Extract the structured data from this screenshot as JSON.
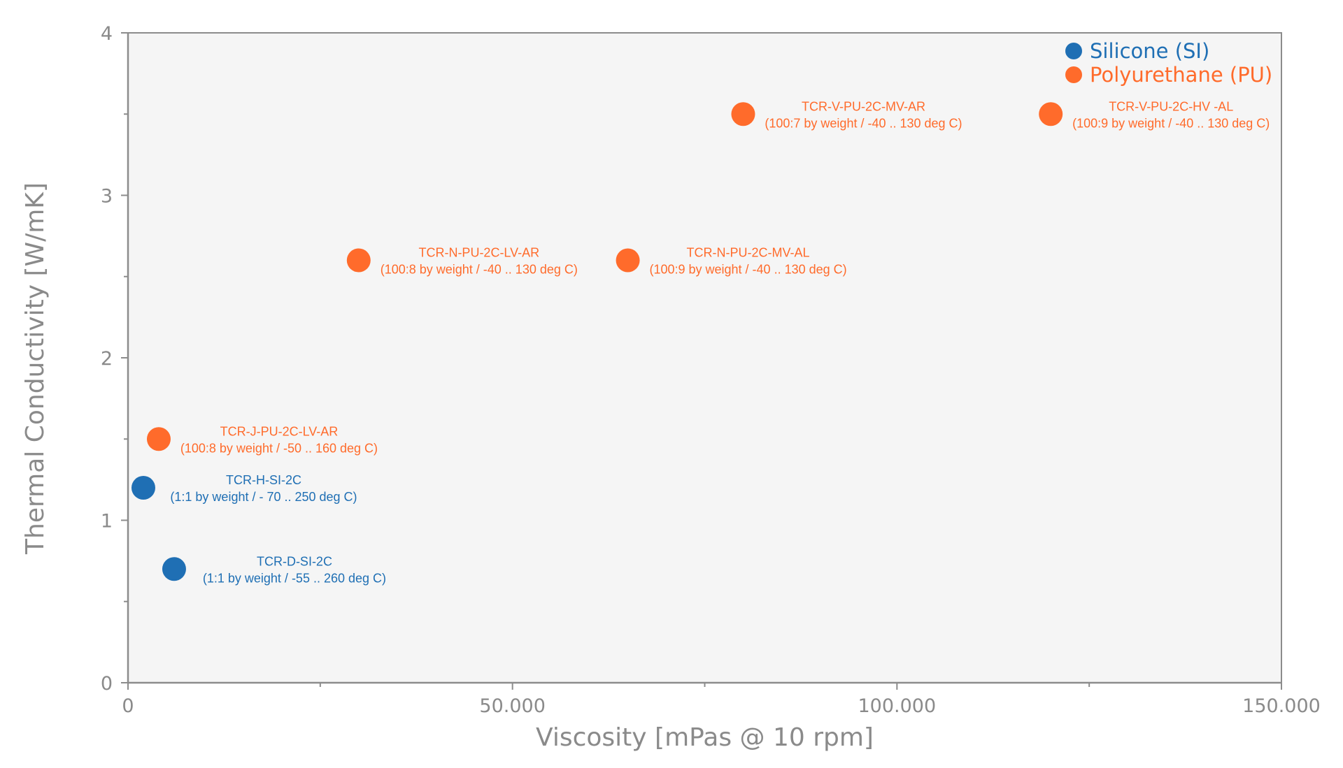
{
  "chart_data": {
    "type": "scatter",
    "title": "",
    "xlabel": "Viscosity [mPas @ 10 rpm]",
    "ylabel": "Thermal Conductivity [W/mK]",
    "xlim": [
      0,
      150000
    ],
    "ylim": [
      0,
      4
    ],
    "x_ticks": [
      0,
      50000,
      100000,
      150000
    ],
    "x_tick_labels": [
      "0",
      "50.000",
      "100.000",
      "150.000"
    ],
    "y_ticks": [
      0,
      1,
      2,
      3,
      4
    ],
    "y_tick_labels": [
      "0",
      "1",
      "2",
      "3",
      "4"
    ],
    "grid": false,
    "background": "#f5f5f5",
    "legend_position": "top-right",
    "series": [
      {
        "name": "Silicone (SI)",
        "color": "#1f6fb4",
        "label_color": "#1f6fb4",
        "points": [
          {
            "x": 2000,
            "y": 1.2,
            "label_line1": "TCR-H-SI-2C",
            "label_line2": "(1:1 by weight / - 70 .. 250 deg C)"
          },
          {
            "x": 6000,
            "y": 0.7,
            "label_line1": "TCR-D-SI-2C",
            "label_line2": "(1:1 by weight / -55 .. 260 deg C)"
          }
        ]
      },
      {
        "name": "Polyurethane (PU)",
        "color": "#ff6b2b",
        "label_color": "#ff6b2b",
        "points": [
          {
            "x": 4000,
            "y": 1.5,
            "label_line1": "TCR-J-PU-2C-LV-AR",
            "label_line2": "(100:8 by weight / -50 .. 160 deg C)"
          },
          {
            "x": 30000,
            "y": 2.6,
            "label_line1": "TCR-N-PU-2C-LV-AR",
            "label_line2": "(100:8 by weight / -40 .. 130 deg C)"
          },
          {
            "x": 65000,
            "y": 2.6,
            "label_line1": "TCR-N-PU-2C-MV-AL",
            "label_line2": "(100:9 by weight / -40 .. 130 deg C)"
          },
          {
            "x": 80000,
            "y": 3.5,
            "label_line1": "TCR-V-PU-2C-MV-AR",
            "label_line2": "(100:7 by weight / -40 .. 130 deg C)"
          },
          {
            "x": 120000,
            "y": 3.5,
            "label_line1": "TCR-V-PU-2C-HV -AL",
            "label_line2": "(100:9 by weight / -40 .. 130 deg C)"
          }
        ]
      }
    ]
  }
}
